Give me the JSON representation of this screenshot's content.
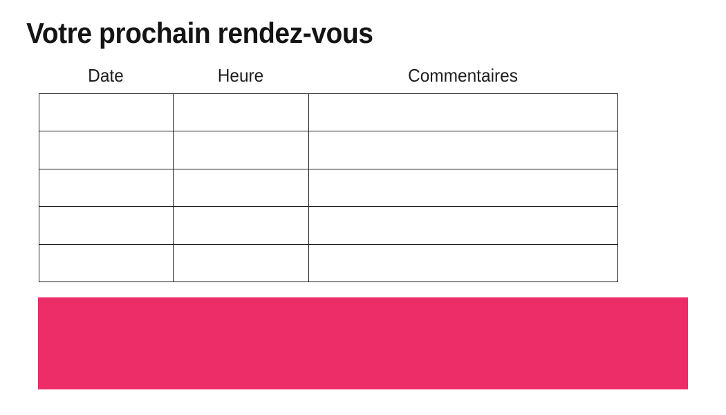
{
  "page": {
    "title": "Votre prochain rendez-vous"
  },
  "table": {
    "columns": [
      "Date",
      "Heure",
      "Commentaires"
    ],
    "rows": [
      [
        "",
        "",
        ""
      ],
      [
        "",
        "",
        ""
      ],
      [
        "",
        "",
        ""
      ],
      [
        "",
        "",
        ""
      ],
      [
        "",
        "",
        ""
      ]
    ]
  },
  "banner": {
    "color": "#ED2D67",
    "text": ""
  }
}
